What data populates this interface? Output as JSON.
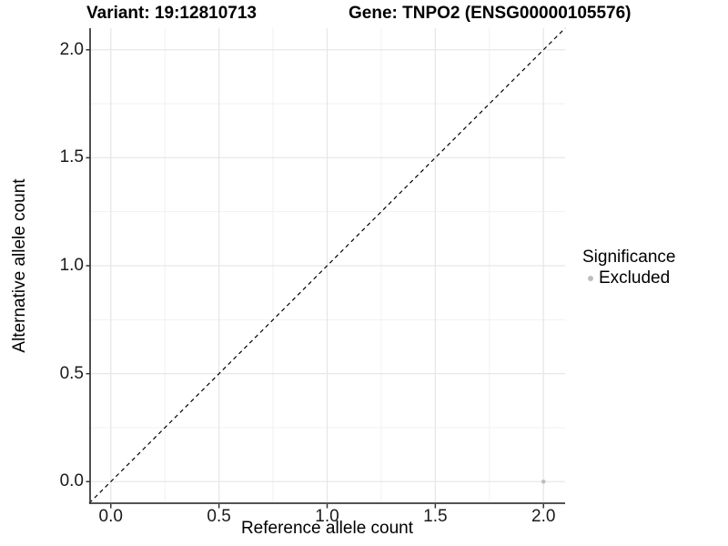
{
  "header": {
    "variant_title": "Variant: 19:12810713",
    "gene_title": "Gene: TNPO2 (ENSG00000105576)"
  },
  "chart_data": {
    "type": "scatter",
    "title": "Variant: 19:12810713  Gene: TNPO2 (ENSG00000105576)",
    "xlabel": "Reference allele count",
    "ylabel": "Alternative allele count",
    "xlim": [
      -0.1,
      2.1
    ],
    "ylim": [
      -0.1,
      2.1
    ],
    "x_ticks": [
      0.0,
      0.5,
      1.0,
      1.5,
      2.0
    ],
    "x_tick_labels": [
      "0.0",
      "0.5",
      "1.0",
      "1.5",
      "2.0"
    ],
    "y_ticks": [
      0.0,
      0.5,
      1.0,
      1.5,
      2.0
    ],
    "y_tick_labels": [
      "0.0",
      "0.5",
      "1.0",
      "1.5",
      "2.0"
    ],
    "minor_ticks": [
      0.25,
      0.75,
      1.25,
      1.75
    ],
    "grid": true,
    "points": [
      {
        "x": 2.0,
        "y": 0.0,
        "series": "Excluded"
      }
    ],
    "reference_line": {
      "slope": 1,
      "intercept": 0,
      "linetype": "dashed"
    },
    "colors": {
      "point": "#bebebe",
      "reference_line": "#000000",
      "grid_major": "#e7e7e7",
      "grid_minor": "#f1f1f1",
      "axis_line": "#3c3c3c",
      "tick_mark": "#333333"
    },
    "legend_position": "right"
  },
  "legend": {
    "title": "Significance",
    "items": [
      {
        "label": "Excluded",
        "color": "#bebebe"
      }
    ]
  }
}
